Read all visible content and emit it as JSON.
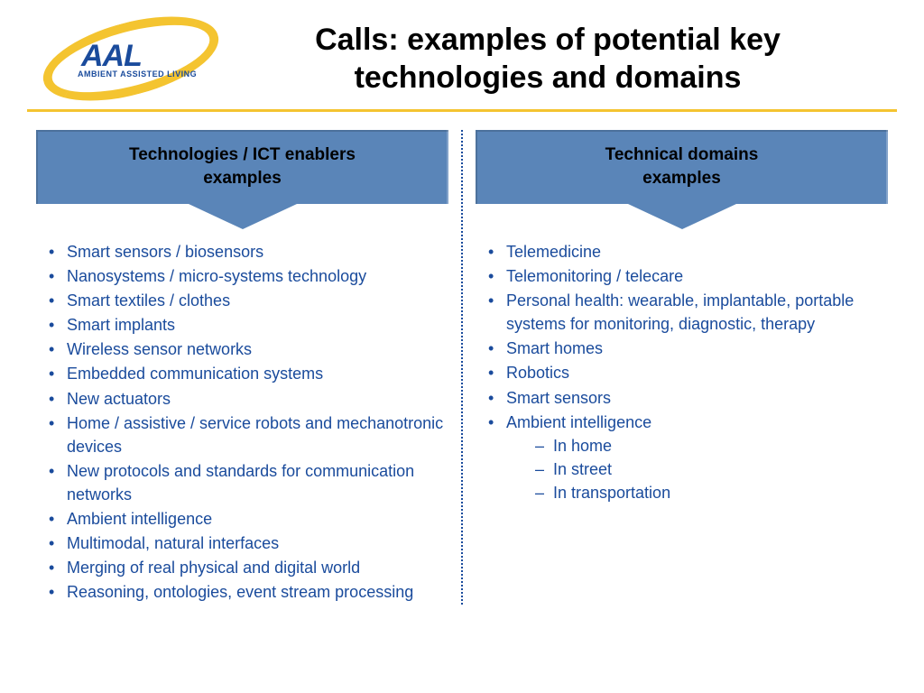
{
  "logo": {
    "name": "AAL",
    "tagline": "AMBIENT ASSISTED LIVING",
    "text_color": "#1a4b9c",
    "ring_color": "#f4c430"
  },
  "title_line1": "Calls: examples of potential key",
  "title_line2": "technologies and domains",
  "divider_color": "#f4c430",
  "banner_bg": "#5a85b8",
  "list_text_color": "#1a4b9c",
  "left": {
    "header_line1": "Technologies / ICT enablers",
    "header_line2": "examples",
    "items": [
      "Smart sensors / biosensors",
      "Nanosystems / micro-systems technology",
      "Smart textiles / clothes",
      "Smart implants",
      "Wireless sensor networks",
      "Embedded communication systems",
      "New actuators",
      "Home / assistive / service robots and mechanotronic devices",
      "New protocols and standards for communication networks",
      "Ambient intelligence",
      "Multimodal, natural interfaces",
      "Merging of real physical and digital world",
      "Reasoning, ontologies, event stream processing"
    ]
  },
  "right": {
    "header_line1": "Technical domains",
    "header_line2": "examples",
    "items": [
      "Telemedicine",
      "Telemonitoring / telecare",
      "Personal health: wearable, implantable, portable systems for monitoring, diagnostic, therapy",
      "Smart homes",
      "Robotics",
      "Smart sensors",
      "Ambient intelligence"
    ],
    "subitems": [
      "In home",
      "In street",
      "In transportation"
    ]
  }
}
